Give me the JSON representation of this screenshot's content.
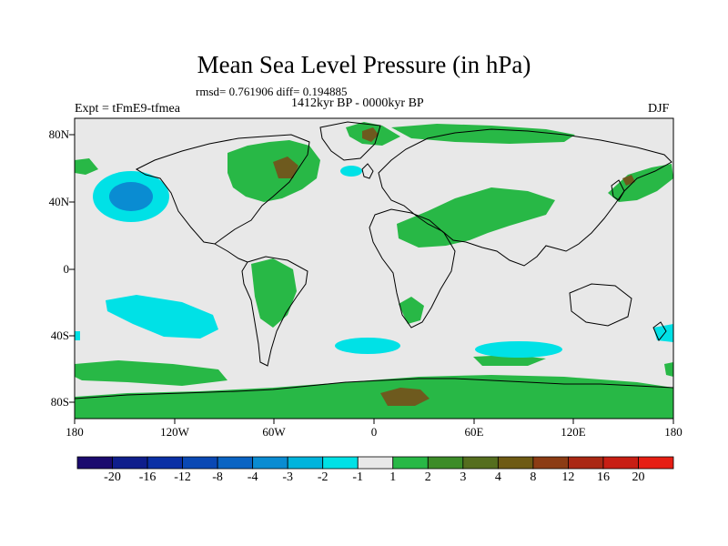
{
  "header": {
    "title": "Mean Sea Level Pressure (in hPa)",
    "stats": "rmsd= 0.761906 diff= 0.194885",
    "period": "1412kyr BP - 0000kyr BP",
    "experiment": "Expt = tFmE9-tfmea",
    "season": "DJF"
  },
  "map": {
    "lat_labels": [
      "80N",
      "40N",
      "0",
      "40S",
      "80S"
    ],
    "lon_labels": [
      "180",
      "120W",
      "60W",
      "0",
      "60E",
      "120E",
      "180"
    ]
  },
  "colorbar": {
    "labels": [
      "-20",
      "-16",
      "-12",
      "-8",
      "-4",
      "-3",
      "-2",
      "-1",
      "1",
      "2",
      "3",
      "4",
      "8",
      "12",
      "16",
      "20"
    ],
    "colors": [
      "#1a0a6e",
      "#0f1e8c",
      "#0a2fa5",
      "#0a48b4",
      "#0a64c3",
      "#0a8cd2",
      "#00b4dc",
      "#00e1e6",
      "#e8e8e8",
      "#28b846",
      "#3c8c28",
      "#556e1e",
      "#6e5a14",
      "#8c3c14",
      "#aa2814",
      "#c81e14",
      "#e61e14"
    ]
  },
  "colors": {
    "background": "#e8e8e8",
    "green": "#28b846",
    "brown": "#6e5a1e",
    "cyan": "#00e1e6",
    "blue": "#0a8cd2",
    "coast": "#000000"
  }
}
